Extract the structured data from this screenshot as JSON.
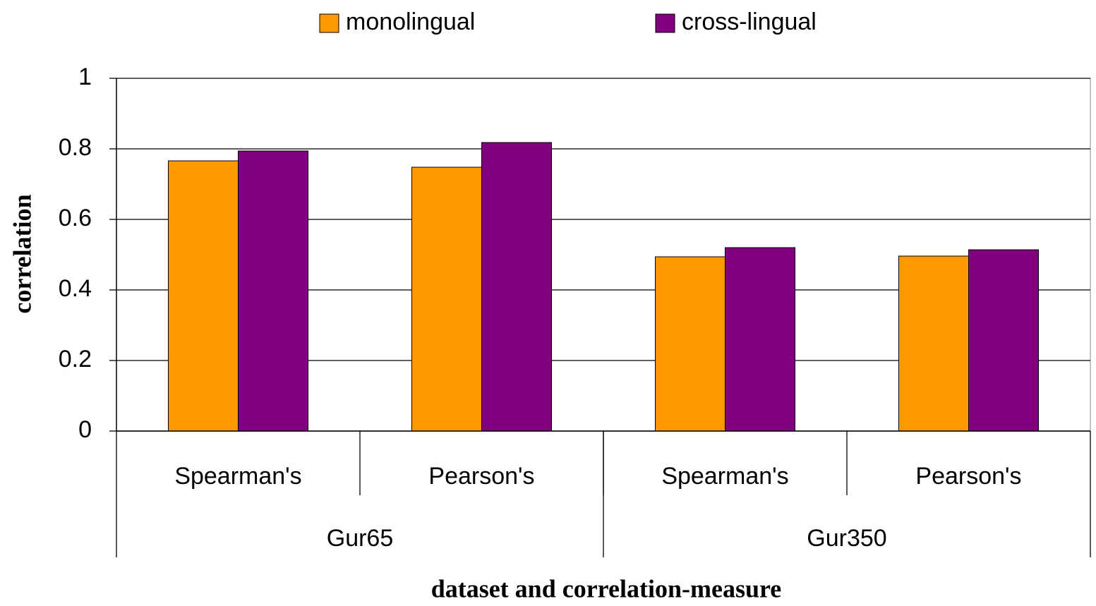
{
  "chart_data": {
    "type": "bar",
    "x_label": "dataset and correlation-measure",
    "y_label": "correlation",
    "categories": [
      "Spearman's",
      "Pearson's",
      "Spearman's",
      "Pearson's"
    ],
    "groups": [
      {
        "name": "Gur65",
        "count": 2
      },
      {
        "name": "Gur350",
        "count": 2
      }
    ],
    "series": [
      {
        "name": "monolingual",
        "color": "#ff9900",
        "values": [
          0.766,
          0.748,
          0.494,
          0.496
        ]
      },
      {
        "name": "cross-lingual",
        "color": "#800080",
        "values": [
          0.794,
          0.818,
          0.52,
          0.514
        ]
      }
    ],
    "ylim": [
      0,
      1
    ],
    "yticks": [
      0,
      0.2,
      0.4,
      0.6,
      0.8,
      1
    ],
    "grid": true,
    "legend": "top"
  }
}
